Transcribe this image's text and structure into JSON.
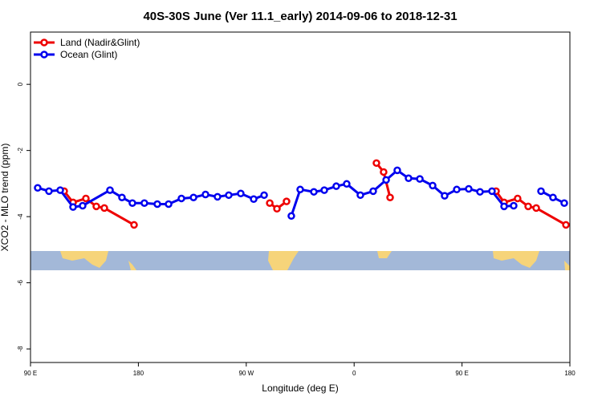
{
  "chart_data": {
    "type": "line",
    "title": "40S-30S June (Ver 11.1_early)   2014-09-06 to 2018-12-31",
    "x_label": "Longitude (deg E)",
    "y_label": "XCO2 - MLO trend (ppm)",
    "xlim": [
      90,
      540
    ],
    "ylim": [
      -8.41,
      1.58
    ],
    "xticks": [
      {
        "value": 90,
        "label": "90 E"
      },
      {
        "value": 180,
        "label": "180"
      },
      {
        "value": 270,
        "label": "90 W"
      },
      {
        "value": 360,
        "label": "0"
      },
      {
        "value": 450,
        "label": "90 E"
      },
      {
        "value": 540,
        "label": "180"
      }
    ],
    "yticks": [
      0,
      -2,
      -4,
      -6,
      -8
    ],
    "legend": "top-left",
    "series": [
      {
        "name": "Land (Nadir&Glint)",
        "color": "#ee0000",
        "x": [
          118.1,
          125.5,
          136.2,
          144.9,
          151.6,
          176.4,
          null,
          289.6,
          295.6,
          303.6,
          null,
          378.6,
          384.6,
          390,
          null,
          478.4,
          485.1,
          496.4,
          505.2,
          511.9,
          536.7
        ],
        "values": [
          -3.23,
          -3.57,
          -3.45,
          -3.69,
          -3.74,
          -4.25,
          null,
          -3.59,
          -3.76,
          -3.54,
          null,
          -2.38,
          -2.65,
          -3.42,
          null,
          -3.23,
          -3.57,
          -3.45,
          -3.69,
          -3.74,
          -4.25
        ]
      },
      {
        "name": "Ocean (Glint)",
        "color": "#0000ee",
        "x": [
          96,
          105.4,
          114.8,
          125.5,
          133.5,
          156.3,
          166.3,
          175,
          185,
          195.8,
          205.2,
          215.9,
          226,
          236,
          246,
          255.4,
          265.4,
          276.2,
          284.9,
          null,
          307.6,
          315,
          326.4,
          335.1,
          345.1,
          353.8,
          365.2,
          375.9,
          386.7,
          396,
          405.4,
          414.8,
          425.5,
          435.5,
          445.6,
          455.6,
          465,
          475,
          485.1,
          493.1,
          null,
          515.9,
          525.9,
          535.3
        ],
        "values": [
          -3.13,
          -3.23,
          -3.2,
          -3.71,
          -3.67,
          -3.2,
          -3.42,
          -3.59,
          -3.59,
          -3.62,
          -3.62,
          -3.45,
          -3.42,
          -3.33,
          -3.4,
          -3.35,
          -3.3,
          -3.47,
          -3.35,
          null,
          -3.98,
          -3.18,
          -3.25,
          -3.2,
          -3.08,
          -3.01,
          -3.35,
          -3.23,
          -2.89,
          -2.6,
          -2.84,
          -2.86,
          -3.06,
          -3.37,
          -3.18,
          -3.16,
          -3.25,
          -3.23,
          -3.69,
          -3.67,
          null,
          -3.23,
          -3.42,
          -3.59
        ]
      }
    ]
  }
}
